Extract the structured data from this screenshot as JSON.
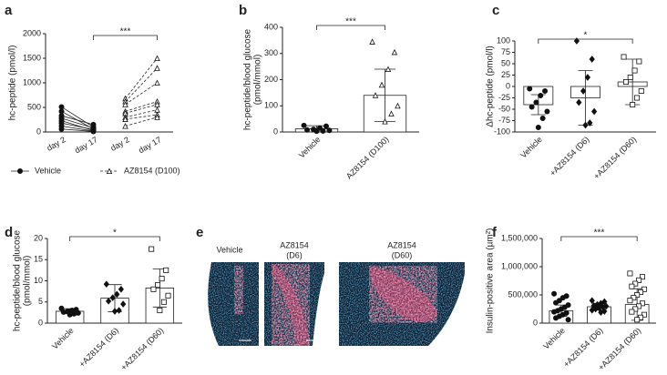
{
  "chart_data": [
    {
      "type": "paired",
      "panel": "a",
      "ylabel": "hc-peptide (pmol/l)",
      "categories": [
        "day 2",
        "day 17",
        "day 2",
        "day 17"
      ],
      "ylim": [
        0,
        2000
      ],
      "yticks": [
        0,
        500,
        1000,
        1500,
        2000
      ],
      "significance": "***",
      "groups": [
        {
          "name": "Vehicle",
          "marker": "circle",
          "dashed": false,
          "day2": [
            510,
            420,
            330,
            280,
            230,
            180,
            120,
            60
          ],
          "day17": [
            100,
            60,
            150,
            80,
            30,
            50,
            20,
            10
          ]
        },
        {
          "name": "AZ8154 (D100)",
          "marker": "triangle",
          "dashed": true,
          "day2": [
            680,
            620,
            560,
            420,
            380,
            300,
            260,
            120
          ],
          "day17": [
            1500,
            1300,
            1000,
            620,
            560,
            450,
            350,
            300
          ]
        }
      ]
    },
    {
      "type": "bar_dot",
      "panel": "b",
      "ylabel": [
        "hc-peptide/blood glucose",
        "(pmol/mmol)"
      ],
      "categories": [
        "Vehicle",
        "AZ8154 (D100)"
      ],
      "values": [
        12,
        140
      ],
      "errors": [
        12,
        100
      ],
      "points": [
        [
          25,
          22,
          15,
          10,
          8,
          6,
          4,
          3
        ],
        [
          345,
          305,
          240,
          180,
          140,
          100,
          70,
          40
        ]
      ],
      "markers": [
        "circle",
        "triangle"
      ],
      "ylim": [
        0,
        400
      ],
      "yticks": [
        0,
        100,
        200,
        300,
        400
      ],
      "significance": "***"
    },
    {
      "type": "bar_dot",
      "panel": "c",
      "ylabel": [
        "Δhc-peptide (pmol/l)"
      ],
      "categories": [
        "Vehicle",
        "+AZ8154 (D6)",
        "+AZ8154 (D60)"
      ],
      "values": [
        -40,
        -25,
        10
      ],
      "errors": [
        22,
        60,
        50
      ],
      "points": [
        [
          -5,
          -10,
          -20,
          -35,
          -45,
          -55,
          -70,
          -90
        ],
        [
          100,
          60,
          20,
          -10,
          -35,
          -55,
          -80,
          -85
        ],
        [
          65,
          55,
          35,
          20,
          10,
          -10,
          -25,
          -40
        ]
      ],
      "markers": [
        "circle",
        "diamond",
        "square"
      ],
      "ylim": [
        -100,
        100
      ],
      "yticks": [
        -100,
        -75,
        -50,
        -25,
        0,
        25,
        50,
        75,
        100
      ],
      "significance": "*"
    },
    {
      "type": "bar_dot",
      "panel": "d",
      "ylabel": [
        "hc-peptide/blood glucose",
        "(pmol/mmol)"
      ],
      "categories": [
        "Vehicle",
        "+AZ8154 (D6)",
        "+AZ8154 (D60)"
      ],
      "values": [
        2.8,
        5.9,
        8.3
      ],
      "errors": [
        0.6,
        3.2,
        4.5
      ],
      "points": [
        [
          3.5,
          3.2,
          3,
          2.8,
          2.6,
          2.4,
          2.2,
          2
        ],
        [
          9.2,
          8,
          6.8,
          6,
          5.2,
          4.5,
          3,
          2.8
        ],
        [
          17.5,
          12.5,
          10.5,
          9,
          8,
          6.5,
          5,
          3
        ]
      ],
      "markers": [
        "circle",
        "diamond",
        "square"
      ],
      "ylim": [
        0,
        20
      ],
      "yticks": [
        0,
        5,
        10,
        15,
        20
      ],
      "significance": "*"
    },
    {
      "type": "image",
      "panel": "e",
      "labels": [
        [
          "Vehicle"
        ],
        [
          "AZ8154",
          "(D6)"
        ],
        [
          "AZ8154",
          "(D60)"
        ]
      ]
    },
    {
      "type": "bar_dot",
      "panel": "f",
      "ylabel": [
        "Insulin-positive area (µm²)"
      ],
      "categories": [
        "Vehicle",
        "+AZ8154 (D6)",
        "+AZ8154 (D60)"
      ],
      "values": [
        220000,
        290000,
        330000
      ],
      "errors": [
        100000,
        60000,
        280000
      ],
      "points": [
        [
          520000,
          480000,
          450000,
          400000,
          360000,
          320000,
          280000,
          250000,
          220000,
          200000,
          180000,
          150000,
          120000,
          90000,
          60000
        ],
        [
          400000,
          380000,
          350000,
          330000,
          310000,
          300000,
          290000,
          270000,
          250000,
          230000,
          210000,
          190000
        ],
        [
          880000,
          820000,
          760000,
          700000,
          650000,
          600000,
          550000,
          500000,
          450000,
          400000,
          350000,
          300000,
          250000,
          200000,
          150000,
          100000,
          60000
        ]
      ],
      "markers": [
        "circle",
        "diamond",
        "square"
      ],
      "ylim": [
        0,
        1500000
      ],
      "yticks": [
        0,
        {
          "value": 500000,
          "label": "500,000"
        },
        {
          "value": 1000000,
          "label": "1,000,000"
        },
        {
          "value": 1500000,
          "label": "1,500,000"
        }
      ],
      "significance": "***"
    }
  ]
}
